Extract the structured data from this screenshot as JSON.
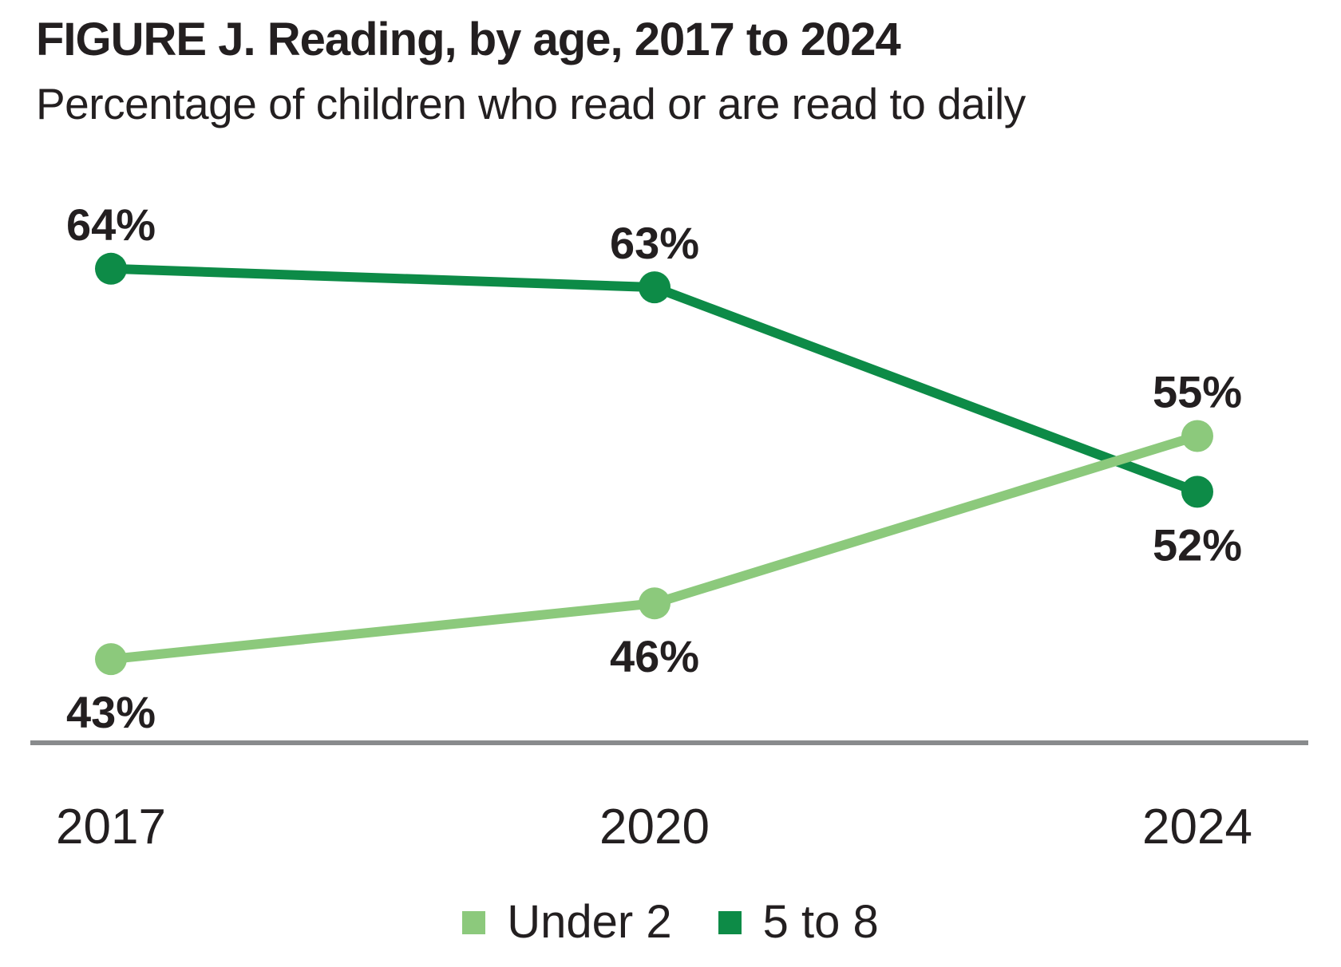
{
  "figure": {
    "title": "FIGURE J. Reading, by age, 2017 to 2024",
    "subtitle": "Percentage of children who read or are read to daily"
  },
  "colors": {
    "text": "#231F20",
    "axis_line": "#898B8D",
    "under_2_green": "#8CC97C",
    "five_to_8_green": "#0D8B47",
    "background": "#FFFFFF"
  },
  "chart_data": {
    "type": "line",
    "title": "FIGURE J. Reading, by age, 2017 to 2024",
    "subtitle": "Percentage of children who read or are read to daily",
    "categories": [
      "2017",
      "2020",
      "2024"
    ],
    "series": [
      {
        "name": "Under 2",
        "color": "#8CC97C",
        "values": [
          43,
          46,
          55
        ],
        "value_labels": [
          "43%",
          "46%",
          "55%"
        ],
        "label_placement": [
          "below",
          "below",
          "above"
        ]
      },
      {
        "name": "5 to 8",
        "color": "#0D8B47",
        "values": [
          64,
          63,
          52
        ],
        "value_labels": [
          "64%",
          "63%",
          "52%"
        ],
        "label_placement": [
          "above",
          "above",
          "below"
        ]
      }
    ],
    "ylim": [
      38,
      70
    ],
    "grid": false,
    "x_axis_visible": true,
    "y_axis_visible": false,
    "legend_position": "bottom",
    "marker": "circle",
    "data_labels_visible": true
  },
  "legend": {
    "items": [
      {
        "label": "Under 2",
        "color": "#8CC97C"
      },
      {
        "label": "5 to 8",
        "color": "#0D8B47"
      }
    ]
  }
}
